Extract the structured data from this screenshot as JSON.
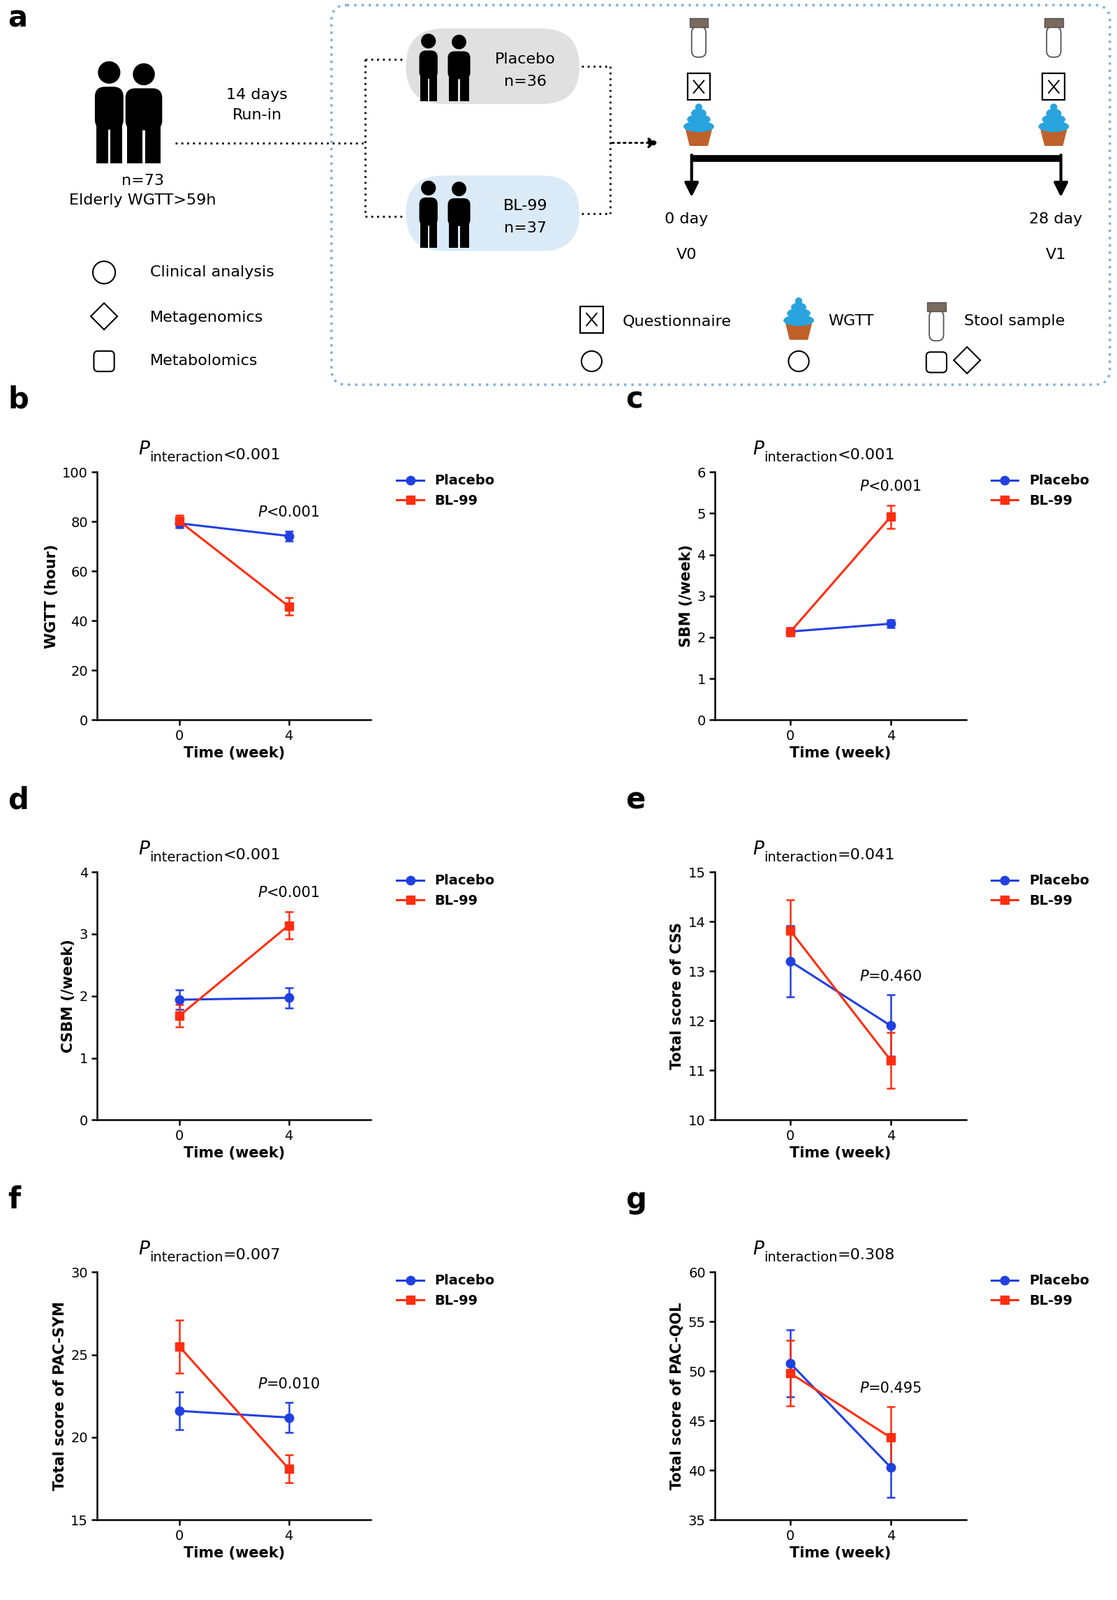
{
  "diagram": {
    "label": "a",
    "population": {
      "n": "n=73",
      "criteria": "Elderly WGTT>59h"
    },
    "run_in": [
      "14 days",
      "Run-in"
    ],
    "groups": [
      {
        "name": "Placebo",
        "n": "n=36"
      },
      {
        "name": "BL-99",
        "n": "n=37"
      }
    ],
    "timeline": [
      {
        "day": "0 day",
        "visit": "V0"
      },
      {
        "day": "28 day",
        "visit": "V1"
      }
    ],
    "analysis_legend": [
      "Clinical analysis",
      "Metagenomics",
      "Metabolomics"
    ],
    "measures_legend": [
      "Questionnaire",
      "WGTT",
      "Stool sample"
    ]
  },
  "chart_data": [
    {
      "label": "b",
      "type": "line",
      "title": [
        "P",
        "interaction",
        "<0.001"
      ],
      "annotation": [
        "P",
        "<0.001"
      ],
      "x_label": "Time (week)",
      "y_label": "WGTT (hour)",
      "x": [
        0,
        4
      ],
      "xlim": [
        -3,
        7
      ],
      "xticks": [
        0,
        4
      ],
      "ylim": [
        0,
        100
      ],
      "yticks": [
        0,
        20,
        40,
        60,
        80,
        100
      ],
      "grid": false,
      "legend": "upper left",
      "series": [
        {
          "name": "Placebo",
          "color": "#2040e0",
          "marker": "circle",
          "values": [
            79.3,
            74.2
          ],
          "errors": [
            1.8,
            2.0
          ]
        },
        {
          "name": "BL-99",
          "color": "#ff2d0f",
          "marker": "square",
          "values": [
            80.2,
            45.8
          ],
          "errors": [
            2.5,
            3.5
          ]
        }
      ]
    },
    {
      "label": "c",
      "type": "line",
      "title": [
        "P",
        "interaction",
        "<0.001"
      ],
      "annotation": [
        "P",
        "<0.001"
      ],
      "x_label": "Time (week)",
      "y_label": "SBM (/week)",
      "x": [
        0,
        4
      ],
      "xlim": [
        -3,
        7
      ],
      "xticks": [
        0,
        4
      ],
      "ylim": [
        0,
        6
      ],
      "yticks": [
        0,
        1,
        2,
        3,
        4,
        5,
        6
      ],
      "grid": false,
      "legend": "upper left",
      "series": [
        {
          "name": "Placebo",
          "color": "#2040e0",
          "marker": "circle",
          "values": [
            2.14,
            2.33
          ],
          "errors": [
            0.08,
            0.1
          ]
        },
        {
          "name": "BL-99",
          "color": "#ff2d0f",
          "marker": "square",
          "values": [
            2.13,
            4.92
          ],
          "errors": [
            0.1,
            0.28
          ]
        }
      ]
    },
    {
      "label": "d",
      "type": "line",
      "title": [
        "P",
        "interaction",
        "<0.001"
      ],
      "annotation": [
        "P",
        "<0.001"
      ],
      "x_label": "Time (week)",
      "y_label": "CSBM (/week)",
      "x": [
        0,
        4
      ],
      "xlim": [
        -3,
        7
      ],
      "xticks": [
        0,
        4
      ],
      "ylim": [
        0,
        4
      ],
      "yticks": [
        0,
        1,
        2,
        3,
        4
      ],
      "grid": false,
      "legend": "upper left",
      "series": [
        {
          "name": "Placebo",
          "color": "#2040e0",
          "marker": "circle",
          "values": [
            1.94,
            1.97
          ],
          "errors": [
            0.16,
            0.16
          ]
        },
        {
          "name": "BL-99",
          "color": "#ff2d0f",
          "marker": "square",
          "values": [
            1.68,
            3.14
          ],
          "errors": [
            0.18,
            0.22
          ]
        }
      ]
    },
    {
      "label": "e",
      "type": "line",
      "title": [
        "P",
        "interaction",
        "=0.041"
      ],
      "annotation": [
        "P",
        "=0.460"
      ],
      "x_label": "Time (week)",
      "y_label": "Total score of CSS",
      "x": [
        0,
        4
      ],
      "xlim": [
        -3,
        7
      ],
      "xticks": [
        0,
        4
      ],
      "ylim": [
        10,
        15
      ],
      "yticks": [
        10,
        11,
        12,
        13,
        14,
        15
      ],
      "grid": false,
      "legend": "upper left",
      "series": [
        {
          "name": "Placebo",
          "color": "#2040e0",
          "marker": "circle",
          "values": [
            13.2,
            11.9
          ],
          "errors": [
            0.72,
            0.62
          ]
        },
        {
          "name": "BL-99",
          "color": "#ff2d0f",
          "marker": "square",
          "values": [
            13.82,
            11.2
          ],
          "errors": [
            0.62,
            0.56
          ]
        }
      ]
    },
    {
      "label": "f",
      "type": "line",
      "title": [
        "P",
        "interaction",
        "=0.007"
      ],
      "annotation": [
        "P",
        "=0.010"
      ],
      "x_label": "Time (week)",
      "y_label": "Total score of PAC-SYM",
      "x": [
        0,
        4
      ],
      "xlim": [
        -3,
        7
      ],
      "xticks": [
        0,
        4
      ],
      "ylim": [
        15,
        30
      ],
      "yticks": [
        15,
        20,
        25,
        30
      ],
      "grid": false,
      "legend": "upper left",
      "series": [
        {
          "name": "Placebo",
          "color": "#2040e0",
          "marker": "circle",
          "values": [
            21.6,
            21.2
          ],
          "errors": [
            1.15,
            0.9
          ]
        },
        {
          "name": "BL-99",
          "color": "#ff2d0f",
          "marker": "square",
          "values": [
            25.5,
            18.1
          ],
          "errors": [
            1.6,
            0.85
          ]
        }
      ]
    },
    {
      "label": "g",
      "type": "line",
      "title": [
        "P",
        "interaction",
        "=0.308"
      ],
      "annotation": [
        "P",
        "=0.495"
      ],
      "x_label": "Time (week)",
      "y_label": "Total score of PAC-QOL",
      "x": [
        0,
        4
      ],
      "xlim": [
        -3,
        7
      ],
      "xticks": [
        0,
        4
      ],
      "ylim": [
        35,
        60
      ],
      "yticks": [
        35,
        40,
        45,
        50,
        55,
        60
      ],
      "grid": false,
      "legend": "upper left",
      "series": [
        {
          "name": "Placebo",
          "color": "#2040e0",
          "marker": "circle",
          "values": [
            50.8,
            40.3
          ],
          "errors": [
            3.4,
            3.0
          ]
        },
        {
          "name": "BL-99",
          "color": "#ff2d0f",
          "marker": "square",
          "values": [
            49.8,
            43.3
          ],
          "errors": [
            3.3,
            3.1
          ]
        }
      ]
    }
  ]
}
